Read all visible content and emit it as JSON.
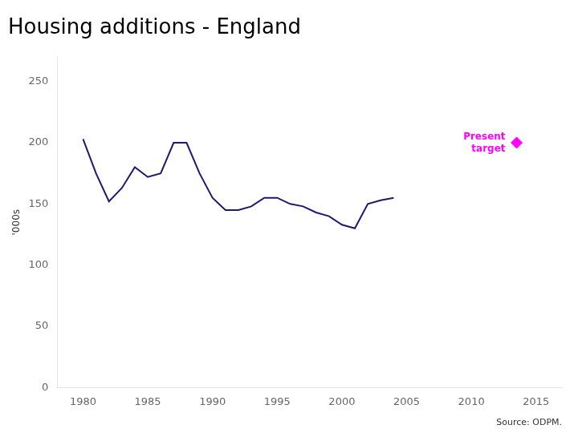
{
  "chart_data": {
    "type": "line",
    "title": "Housing additions - England",
    "ylabel": "'000s",
    "x": [
      1980,
      1981,
      1982,
      1983,
      1984,
      1985,
      1986,
      1987,
      1988,
      1989,
      1990,
      1991,
      1992,
      1993,
      1994,
      1995,
      1996,
      1997,
      1998,
      1999,
      2000,
      2001,
      2002,
      2003,
      2004
    ],
    "series": [
      {
        "color": "#1a1a6e",
        "values": [
          203,
          175,
          152,
          163,
          180,
          172,
          175,
          200,
          200,
          175,
          155,
          145,
          145,
          148,
          155,
          155,
          150,
          148,
          143,
          140,
          133,
          130,
          150,
          153,
          155
        ]
      }
    ],
    "annotations": [
      {
        "x": 2013.5,
        "y": 200,
        "text": [
          "Present",
          "target"
        ],
        "color": "#ff00ff",
        "marker": "diamond"
      },
      {
        "text": "Source: ODPM."
      }
    ],
    "xlim": [
      1978,
      2017
    ],
    "xticks": [
      1980,
      1985,
      1990,
      1995,
      2000,
      2005,
      2010,
      2015
    ],
    "ylim": [
      0,
      270
    ],
    "yticks": [
      0,
      50,
      100,
      150,
      200,
      250
    ],
    "grid": false,
    "legend": false
  }
}
